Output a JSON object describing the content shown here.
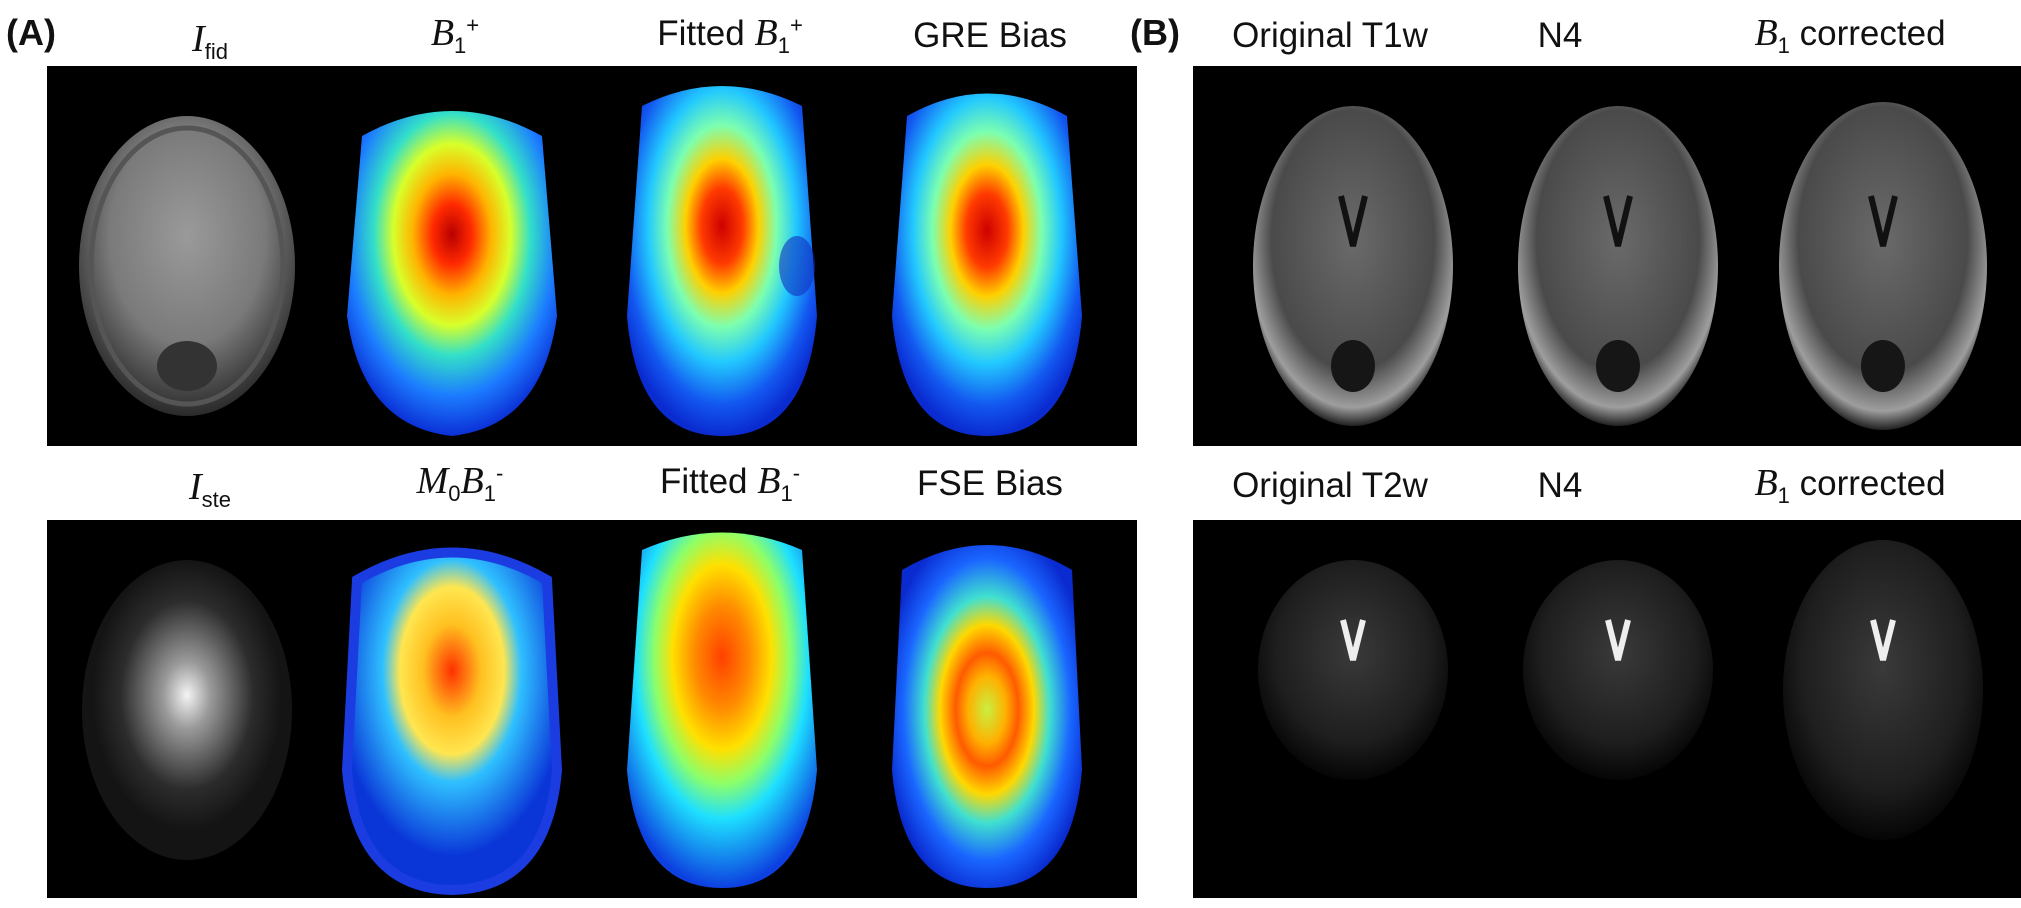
{
  "panel_a": {
    "letter": "(A)",
    "row1": [
      {
        "sym": "I",
        "sub": "fid",
        "sup": "",
        "pre": "",
        "post": ""
      },
      {
        "sym": "B",
        "sub": "1",
        "sup": "+",
        "pre": "",
        "post": ""
      },
      {
        "sym": "B",
        "sub": "1",
        "sup": "+",
        "pre": "Fitted ",
        "post": ""
      },
      {
        "sym": "",
        "sub": "",
        "sup": "",
        "pre": "GRE Bias",
        "post": ""
      }
    ],
    "row2": [
      {
        "sym": "I",
        "sub": "ste",
        "sup": "",
        "pre": "",
        "post": ""
      },
      {
        "sym": "M",
        "sub": "0",
        "sup": "",
        "pre": "",
        "post": "",
        "sym2": "B",
        "sub2": "1",
        "sup2": "-"
      },
      {
        "sym": "B",
        "sub": "1",
        "sup": "-",
        "pre": "Fitted ",
        "post": ""
      },
      {
        "sym": "",
        "sub": "",
        "sup": "",
        "pre": "FSE Bias",
        "post": ""
      }
    ]
  },
  "panel_b": {
    "letter": "(B)",
    "row1": [
      {
        "text": "Original T1w"
      },
      {
        "text": "N4"
      },
      {
        "sym": "B",
        "sub": "1",
        "text": " corrected"
      }
    ],
    "row2": [
      {
        "text": "Original T2w"
      },
      {
        "text": "N4"
      },
      {
        "sym": "B",
        "sub": "1",
        "text": " corrected"
      }
    ]
  }
}
